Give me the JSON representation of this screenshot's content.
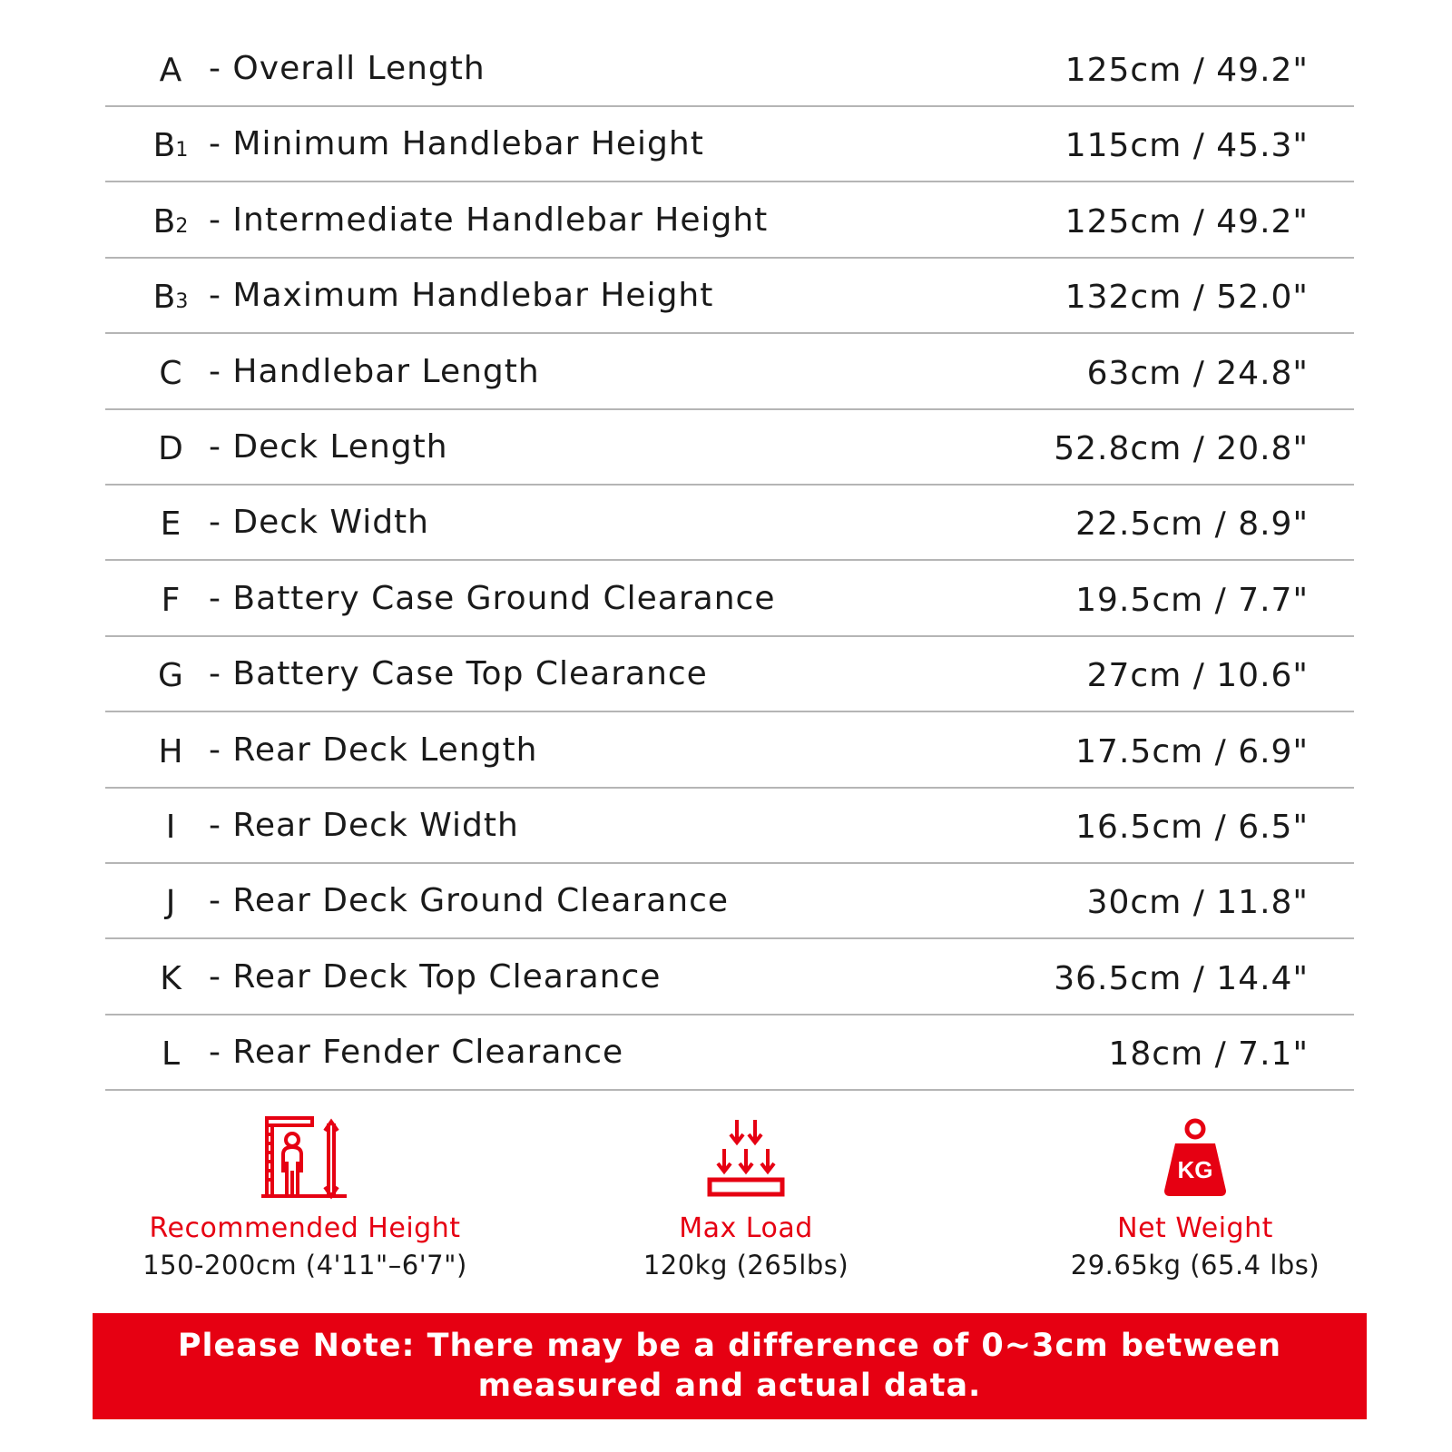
{
  "specs": [
    {
      "letter": "A",
      "sub": "",
      "name": "- Overall Length",
      "value": "125cm / 49.2\""
    },
    {
      "letter": "B",
      "sub": "1",
      "name": "- Minimum Handlebar Height",
      "value": "115cm / 45.3\""
    },
    {
      "letter": "B",
      "sub": "2",
      "name": "- Intermediate Handlebar Height",
      "value": "125cm / 49.2\""
    },
    {
      "letter": "B",
      "sub": "3",
      "name": "- Maximum Handlebar Height",
      "value": "132cm / 52.0\""
    },
    {
      "letter": "C",
      "sub": "",
      "name": "- Handlebar Length",
      "value": "63cm / 24.8\""
    },
    {
      "letter": "D",
      "sub": "",
      "name": "- Deck Length",
      "value": "52.8cm / 20.8\""
    },
    {
      "letter": "E",
      "sub": "",
      "name": "- Deck Width",
      "value": "22.5cm / 8.9\""
    },
    {
      "letter": "F",
      "sub": "",
      "name": "- Battery Case Ground Clearance",
      "value": "19.5cm / 7.7\""
    },
    {
      "letter": "G",
      "sub": "",
      "name": "- Battery Case Top Clearance",
      "value": "27cm / 10.6\""
    },
    {
      "letter": "H",
      "sub": "",
      "name": "- Rear Deck Length",
      "value": "17.5cm / 6.9\""
    },
    {
      "letter": "I",
      "sub": "",
      "name": "- Rear Deck Width",
      "value": "16.5cm / 6.5\""
    },
    {
      "letter": "J",
      "sub": "",
      "name": "- Rear Deck Ground Clearance",
      "value": "30cm / 11.8\""
    },
    {
      "letter": "K",
      "sub": "",
      "name": "- Rear Deck Top Clearance",
      "value": "36.5cm / 14.4\""
    },
    {
      "letter": "L",
      "sub": "",
      "name": "- Rear Fender Clearance",
      "value": "18cm / 7.1\""
    }
  ],
  "features": [
    {
      "icon": "height-measure-icon",
      "title": "Recommended Height",
      "value": "150-200cm (4'11\"–6'7\")"
    },
    {
      "icon": "max-load-icon",
      "title": "Max Load",
      "value": "120kg (265lbs)"
    },
    {
      "icon": "weight-kg-icon",
      "title": "Net Weight",
      "value": "29.65kg (65.4 lbs)",
      "icon_text": "KG"
    }
  ],
  "note": {
    "line1": "Please Note: There may be a difference of 0~3cm between",
    "line2": "measured and actual data."
  },
  "colors": {
    "accent": "#e60012",
    "text": "#1a1a1a",
    "divider": "#b5b5b5"
  }
}
